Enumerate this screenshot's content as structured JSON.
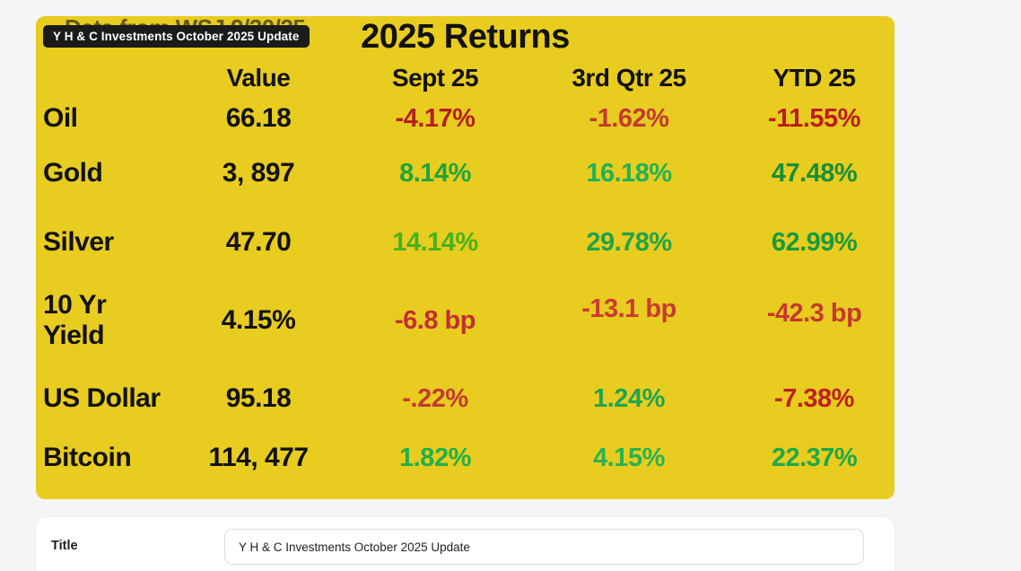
{
  "image_card": {
    "background": "#e8cc1f",
    "occluded_text": "Data from WSJ 9/30/25",
    "badge": {
      "label": "Y H & C Investments October 2025 Update",
      "background": "#1b1b1b",
      "color": "#ffffff"
    },
    "title": "2025 Returns",
    "columns": [
      "Value",
      "Sept 25",
      "3rd Qtr 25",
      "YTD 25"
    ],
    "rows": [
      {
        "label": "Oil",
        "value": "66.18",
        "cells": [
          {
            "text": "-4.17%",
            "color": "#b32020"
          },
          {
            "text": "-1.62%",
            "color": "#c23a2e"
          },
          {
            "text": "-11.55%",
            "color": "#bb1d1d"
          }
        ]
      },
      {
        "label": "Gold",
        "value": "3, 897",
        "cells": [
          {
            "text": "8.14%",
            "color": "#1fa53d"
          },
          {
            "text": "16.18%",
            "color": "#1eb257"
          },
          {
            "text": "47.48%",
            "color": "#189038"
          }
        ]
      },
      {
        "label": "Silver",
        "value": "47.70",
        "cells": [
          {
            "text": "14.14%",
            "color": "#47b21e"
          },
          {
            "text": "29.78%",
            "color": "#21a349"
          },
          {
            "text": "62.99%",
            "color": "#1a9a3c"
          }
        ]
      },
      {
        "label": "10 Yr Yield",
        "value": "4.15%",
        "cells": [
          {
            "text": "-6.8 bp",
            "color": "#c22f2f"
          },
          {
            "text": "-13.1 bp",
            "color": "#ca3a32"
          },
          {
            "text": "-42.3 bp",
            "color": "#c43a2e"
          }
        ]
      },
      {
        "label": "US Dollar",
        "value": "95.18",
        "cells": [
          {
            "text": "-.22%",
            "color": "#c23b31"
          },
          {
            "text": "1.24%",
            "color": "#1ca64f"
          },
          {
            "text": "-7.38%",
            "color": "#bf2020"
          }
        ]
      },
      {
        "label": "Bitcoin",
        "value": "114, 477",
        "cells": [
          {
            "text": "1.82%",
            "color": "#21af49"
          },
          {
            "text": "4.15%",
            "color": "#27b353"
          },
          {
            "text": "22.37%",
            "color": "#1ea94a"
          }
        ]
      }
    ]
  },
  "form": {
    "title_label": "Title",
    "title_value": "Y H & C Investments October 2025 Update"
  },
  "colors": {
    "page_background": "#f4f5f7",
    "card_yellow": "#e8cc1f",
    "text_black": "#121212",
    "negative_red": "#bf2626",
    "positive_green": "#1fa53d"
  }
}
